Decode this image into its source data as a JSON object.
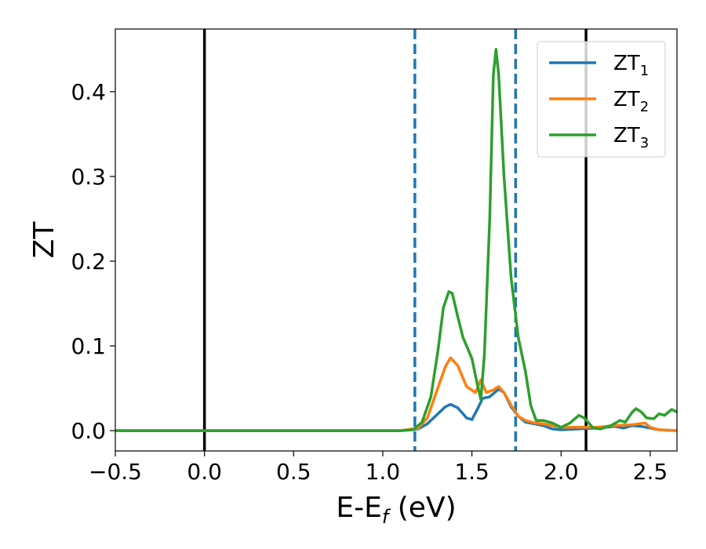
{
  "chart_data": {
    "type": "line",
    "title": "",
    "xlabel": {
      "main": "E-E",
      "sub": "f",
      "suffix": " (eV)"
    },
    "ylabel": "ZT",
    "xlim": [
      -0.5,
      2.65
    ],
    "ylim": [
      -0.024,
      0.474
    ],
    "xticks": [
      -0.5,
      0.0,
      0.5,
      1.0,
      1.5,
      2.0,
      2.5
    ],
    "xtick_labels": [
      "−0.5",
      "0.0",
      "0.5",
      "1.0",
      "1.5",
      "2.0",
      "2.5"
    ],
    "yticks": [
      0.0,
      0.1,
      0.2,
      0.3,
      0.4
    ],
    "ytick_labels": [
      "0.0",
      "0.1",
      "0.2",
      "0.3",
      "0.4"
    ],
    "grid": false,
    "legend_position": "top-right",
    "vlines": [
      {
        "x": 0.0,
        "style": "solid",
        "color": "#000000"
      },
      {
        "x": 2.14,
        "style": "solid",
        "color": "#000000"
      },
      {
        "x": 1.18,
        "style": "dashed",
        "color": "#1f77b4"
      },
      {
        "x": 1.745,
        "style": "dashed",
        "color": "#1f77b4"
      }
    ],
    "series": [
      {
        "name": "ZT",
        "sub": "1",
        "color": "#1f77b4",
        "points": [
          [
            -0.5,
            0
          ],
          [
            1.1,
            0
          ],
          [
            1.2,
            0.002
          ],
          [
            1.25,
            0.008
          ],
          [
            1.3,
            0.018
          ],
          [
            1.35,
            0.028
          ],
          [
            1.38,
            0.031
          ],
          [
            1.42,
            0.027
          ],
          [
            1.47,
            0.015
          ],
          [
            1.5,
            0.013
          ],
          [
            1.53,
            0.025
          ],
          [
            1.56,
            0.038
          ],
          [
            1.6,
            0.04
          ],
          [
            1.65,
            0.049
          ],
          [
            1.68,
            0.045
          ],
          [
            1.72,
            0.028
          ],
          [
            1.76,
            0.017
          ],
          [
            1.8,
            0.01
          ],
          [
            1.85,
            0.008
          ],
          [
            1.9,
            0.006
          ],
          [
            1.95,
            0.002
          ],
          [
            2.0,
            0.001
          ],
          [
            2.1,
            0.002
          ],
          [
            2.2,
            0.003
          ],
          [
            2.3,
            0.005
          ],
          [
            2.35,
            0.003
          ],
          [
            2.4,
            0.006
          ],
          [
            2.45,
            0.005
          ],
          [
            2.5,
            0.003
          ],
          [
            2.55,
            0.001
          ],
          [
            2.65,
            0
          ]
        ]
      },
      {
        "name": "ZT",
        "sub": "2",
        "color": "#ff7f0e",
        "points": [
          [
            -0.5,
            0
          ],
          [
            1.1,
            0
          ],
          [
            1.2,
            0.003
          ],
          [
            1.25,
            0.015
          ],
          [
            1.3,
            0.045
          ],
          [
            1.35,
            0.075
          ],
          [
            1.38,
            0.086
          ],
          [
            1.42,
            0.077
          ],
          [
            1.47,
            0.052
          ],
          [
            1.52,
            0.045
          ],
          [
            1.55,
            0.06
          ],
          [
            1.58,
            0.045
          ],
          [
            1.62,
            0.048
          ],
          [
            1.65,
            0.052
          ],
          [
            1.68,
            0.045
          ],
          [
            1.72,
            0.03
          ],
          [
            1.76,
            0.017
          ],
          [
            1.8,
            0.012
          ],
          [
            1.85,
            0.009
          ],
          [
            1.9,
            0.008
          ],
          [
            1.95,
            0.006
          ],
          [
            2.0,
            0.004
          ],
          [
            2.1,
            0.004
          ],
          [
            2.2,
            0.004
          ],
          [
            2.3,
            0.006
          ],
          [
            2.4,
            0.007
          ],
          [
            2.47,
            0.009
          ],
          [
            2.5,
            0.004
          ],
          [
            2.55,
            0.001
          ],
          [
            2.65,
            0
          ]
        ]
      },
      {
        "name": "ZT",
        "sub": "3",
        "color": "#2ca02c",
        "points": [
          [
            -0.5,
            0
          ],
          [
            1.1,
            0
          ],
          [
            1.17,
            0.001
          ],
          [
            1.22,
            0.01
          ],
          [
            1.27,
            0.04
          ],
          [
            1.31,
            0.095
          ],
          [
            1.34,
            0.145
          ],
          [
            1.37,
            0.164
          ],
          [
            1.39,
            0.162
          ],
          [
            1.42,
            0.135
          ],
          [
            1.45,
            0.11
          ],
          [
            1.5,
            0.085
          ],
          [
            1.53,
            0.055
          ],
          [
            1.55,
            0.037
          ],
          [
            1.57,
            0.09
          ],
          [
            1.6,
            0.25
          ],
          [
            1.62,
            0.42
          ],
          [
            1.635,
            0.45
          ],
          [
            1.65,
            0.42
          ],
          [
            1.68,
            0.3
          ],
          [
            1.72,
            0.18
          ],
          [
            1.76,
            0.11
          ],
          [
            1.8,
            0.07
          ],
          [
            1.83,
            0.03
          ],
          [
            1.86,
            0.012
          ],
          [
            1.9,
            0.012
          ],
          [
            1.95,
            0.009
          ],
          [
            2.0,
            0.004
          ],
          [
            2.05,
            0.009
          ],
          [
            2.1,
            0.018
          ],
          [
            2.13,
            0.015
          ],
          [
            2.18,
            0.003
          ],
          [
            2.22,
            0.002
          ],
          [
            2.28,
            0.006
          ],
          [
            2.33,
            0.012
          ],
          [
            2.36,
            0.01
          ],
          [
            2.4,
            0.022
          ],
          [
            2.42,
            0.026
          ],
          [
            2.45,
            0.022
          ],
          [
            2.48,
            0.015
          ],
          [
            2.52,
            0.014
          ],
          [
            2.55,
            0.02
          ],
          [
            2.58,
            0.018
          ],
          [
            2.62,
            0.025
          ],
          [
            2.65,
            0.022
          ]
        ]
      }
    ]
  }
}
